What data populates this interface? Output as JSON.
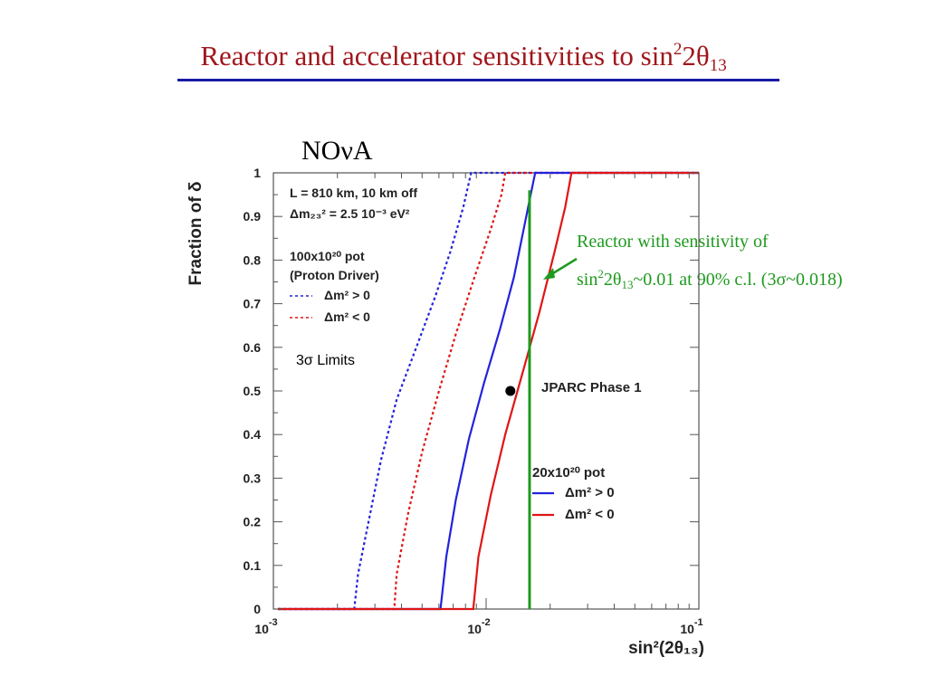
{
  "slide": {
    "title": {
      "prefix": "Reactor and accelerator sensitivities to sin",
      "sup": "2",
      "mid": "2θ",
      "sub": "13"
    },
    "nova_label": "NOνA",
    "reactor_note": {
      "line1": "Reactor with sensitivity of",
      "line2_prefix": "sin",
      "line2_sup": "2",
      "line2_mid": "2θ",
      "line2_sub": "13",
      "line2_suffix": "~0.01 at 90% c.l. (3σ~0.018)"
    },
    "colors": {
      "title": "#a0161b",
      "rule": "#1a1aa6",
      "reactor": "#1e9a1e"
    }
  },
  "chart_data": {
    "type": "line",
    "x_scale": "log",
    "xlim": [
      0.001,
      0.1
    ],
    "ylim": [
      0,
      1
    ],
    "xlabel": "sin²(2θ₁₃)",
    "ylabel": "Fraction of δ",
    "x_ticks": [
      {
        "value": 0.001,
        "base": "10",
        "exp": "-3"
      },
      {
        "value": 0.01,
        "base": "10",
        "exp": "-2"
      },
      {
        "value": 0.1,
        "base": "10",
        "exp": "-1"
      }
    ],
    "y_ticks": [
      "0",
      "0.1",
      "0.2",
      "0.3",
      "0.4",
      "0.5",
      "0.6",
      "0.7",
      "0.8",
      "0.9",
      "1"
    ],
    "info_lines": [
      "L = 810 km, 10 km off",
      "Δm₂₃² = 2.5 10⁻³ eV²"
    ],
    "legend_upper": {
      "header": [
        "100x10²⁰ pot",
        "(Proton Driver)"
      ],
      "entries": [
        {
          "label": "Δm² > 0",
          "color": "#2222dd",
          "dash": true
        },
        {
          "label": "Δm² < 0",
          "color": "#e01515",
          "dash": true
        }
      ]
    },
    "legend_lower": {
      "header": "20x10²⁰ pot",
      "entries": [
        {
          "label": "Δm² > 0",
          "color": "#2222dd",
          "dash": false
        },
        {
          "label": "Δm² < 0",
          "color": "#e01515",
          "dash": false
        }
      ]
    },
    "annotations": {
      "limits": "3σ Limits",
      "jparc": "JPARC Phase 1"
    },
    "series": [
      {
        "color": "#2222dd",
        "dash": true,
        "points": [
          [
            0.00105,
            0
          ],
          [
            0.0024,
            0
          ],
          [
            0.0025,
            0.08
          ],
          [
            0.0028,
            0.2
          ],
          [
            0.0032,
            0.34
          ],
          [
            0.0038,
            0.48
          ],
          [
            0.0047,
            0.6
          ],
          [
            0.0058,
            0.72
          ],
          [
            0.0068,
            0.82
          ],
          [
            0.0078,
            0.92
          ],
          [
            0.0085,
            1
          ],
          [
            0.1,
            1
          ]
        ]
      },
      {
        "color": "#e01515",
        "dash": true,
        "points": [
          [
            0.00105,
            0
          ],
          [
            0.0037,
            0
          ],
          [
            0.0038,
            0.08
          ],
          [
            0.0043,
            0.22
          ],
          [
            0.005,
            0.36
          ],
          [
            0.006,
            0.5
          ],
          [
            0.0072,
            0.63
          ],
          [
            0.0088,
            0.76
          ],
          [
            0.0105,
            0.87
          ],
          [
            0.0118,
            0.95
          ],
          [
            0.0123,
            1
          ],
          [
            0.1,
            1
          ]
        ]
      },
      {
        "color": "#2222dd",
        "dash": false,
        "points": [
          [
            0.00105,
            0
          ],
          [
            0.0061,
            0
          ],
          [
            0.0065,
            0.12
          ],
          [
            0.0072,
            0.25
          ],
          [
            0.0083,
            0.39
          ],
          [
            0.0098,
            0.52
          ],
          [
            0.0116,
            0.64
          ],
          [
            0.0135,
            0.76
          ],
          [
            0.015,
            0.87
          ],
          [
            0.0162,
            0.95
          ],
          [
            0.017,
            1
          ],
          [
            0.1,
            1
          ]
        ]
      },
      {
        "color": "#e01515",
        "dash": false,
        "points": [
          [
            0.00105,
            0
          ],
          [
            0.0087,
            0
          ],
          [
            0.0092,
            0.12
          ],
          [
            0.0105,
            0.26
          ],
          [
            0.0123,
            0.4
          ],
          [
            0.015,
            0.55
          ],
          [
            0.0178,
            0.68
          ],
          [
            0.021,
            0.82
          ],
          [
            0.0235,
            0.92
          ],
          [
            0.0252,
            1
          ],
          [
            0.1,
            1
          ]
        ]
      }
    ],
    "reactor_line": {
      "x": 0.016,
      "y_range": [
        0,
        0.96
      ],
      "color": "#1e9a1e"
    },
    "jparc_point": {
      "x": 0.013,
      "y": 0.5
    }
  }
}
